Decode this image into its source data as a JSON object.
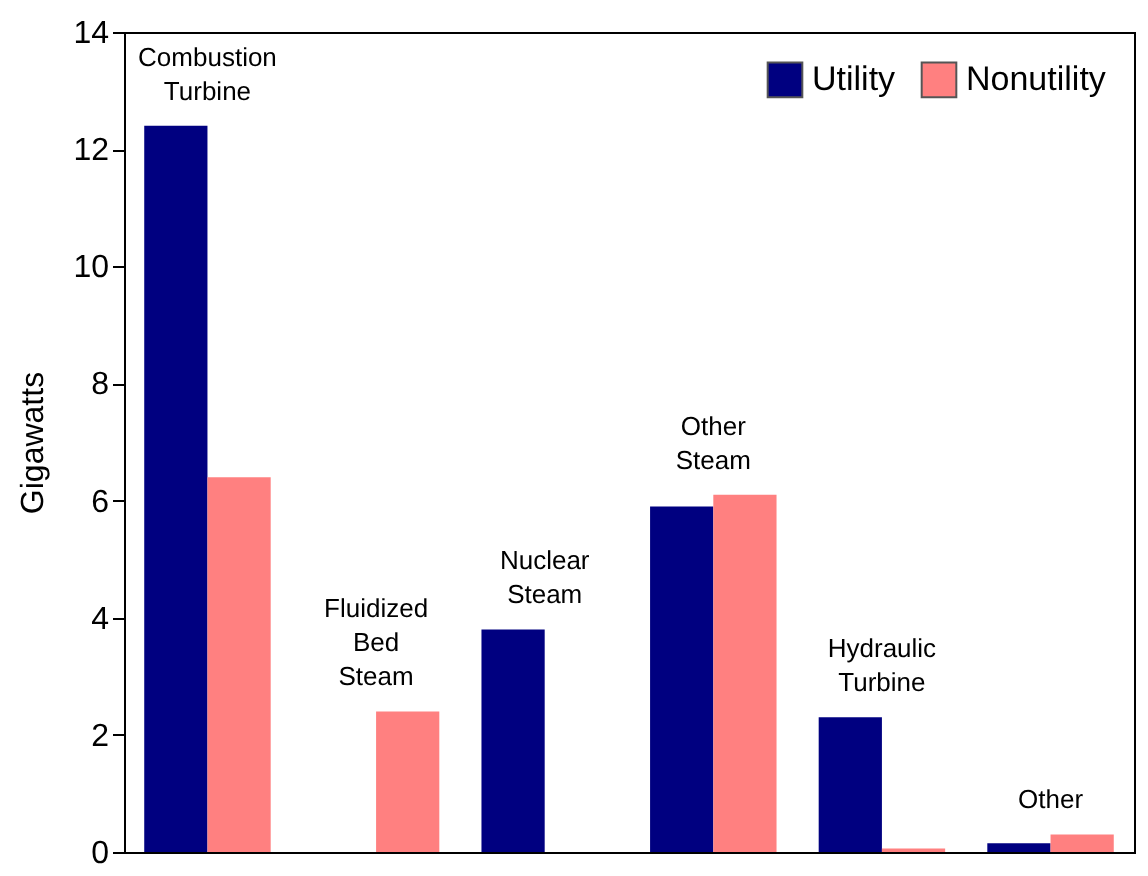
{
  "chart_data": {
    "type": "bar",
    "ylabel": "Gigawatts",
    "categories": [
      "Combustion Turbine",
      "Fluidized Bed Steam",
      "Nuclear Steam",
      "Other Steam",
      "Hydraulic Turbine",
      "Other"
    ],
    "series": [
      {
        "name": "Utility",
        "color": "#000080",
        "values": [
          12.4,
          0,
          3.8,
          5.9,
          2.3,
          0.15
        ]
      },
      {
        "name": "Nonutility",
        "color": "#ff8080",
        "values": [
          6.4,
          2.4,
          0,
          6.1,
          0.06,
          0.3
        ]
      }
    ],
    "ylim": [
      0,
      14
    ],
    "yticks": [
      0,
      2,
      4,
      6,
      8,
      10,
      12,
      14
    ],
    "grid": false,
    "legend": "top right",
    "tick_labels": "y"
  }
}
